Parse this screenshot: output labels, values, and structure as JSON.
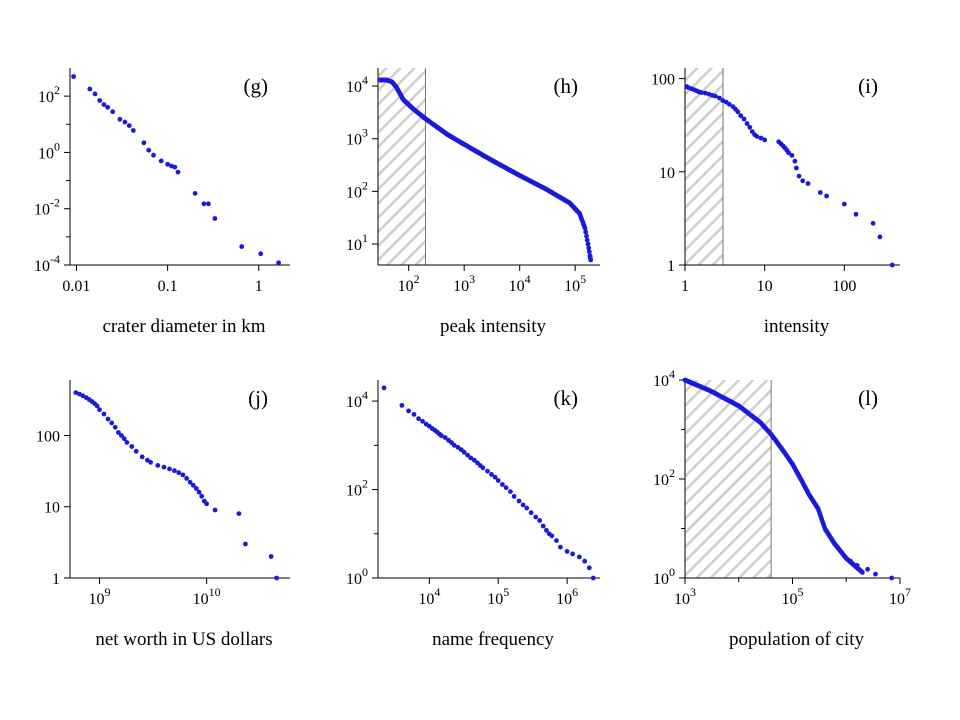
{
  "colors": {
    "points": "#1a1adc",
    "hatch": "#c8c8c8",
    "axis": "#000000"
  },
  "chart_data": [
    {
      "type": "scatter",
      "panel": "(g)",
      "xlabel": "crater diameter in km",
      "xscale": "log",
      "yscale": "log",
      "xlim": [
        0.0085,
        2.2
      ],
      "ylim": [
        0.0001,
        1000
      ],
      "xticks": [
        {
          "v": 0.01,
          "t": "0.01"
        },
        {
          "v": 0.1,
          "t": "0.1"
        },
        {
          "v": 1,
          "t": "1"
        }
      ],
      "yticks": [
        {
          "v": 0.0001,
          "t": "10",
          "e": "-4"
        },
        {
          "v": 0.01,
          "t": "10",
          "e": "-2"
        },
        {
          "v": 1,
          "t": "10",
          "e": "0"
        },
        {
          "v": 100,
          "t": "10",
          "e": "2"
        }
      ],
      "minor_x": [],
      "minor_y": [
        0.001,
        0.1,
        10
      ],
      "shade": null,
      "points": [
        [
          0.0093,
          500
        ],
        [
          0.014,
          180
        ],
        [
          0.016,
          120
        ],
        [
          0.018,
          70
        ],
        [
          0.02,
          50
        ],
        [
          0.022,
          40
        ],
        [
          0.025,
          28
        ],
        [
          0.03,
          15
        ],
        [
          0.034,
          12
        ],
        [
          0.038,
          9
        ],
        [
          0.042,
          6
        ],
        [
          0.055,
          2.2
        ],
        [
          0.062,
          1.2
        ],
        [
          0.07,
          0.8
        ],
        [
          0.085,
          0.5
        ],
        [
          0.1,
          0.38
        ],
        [
          0.11,
          0.33
        ],
        [
          0.12,
          0.3
        ],
        [
          0.13,
          0.2
        ],
        [
          0.2,
          0.035
        ],
        [
          0.25,
          0.015
        ],
        [
          0.28,
          0.015
        ],
        [
          0.33,
          0.0045
        ],
        [
          0.65,
          0.00045
        ],
        [
          1.05,
          0.00025
        ],
        [
          1.65,
          0.00012
        ]
      ]
    },
    {
      "type": "scatter",
      "panel": "(h)",
      "xlabel": "peak intensity",
      "xscale": "log",
      "yscale": "log",
      "xlim": [
        28,
        280000
      ],
      "ylim": [
        4,
        22000
      ],
      "xticks": [
        {
          "v": 100,
          "t": "10",
          "e": "2"
        },
        {
          "v": 1000,
          "t": "10",
          "e": "3"
        },
        {
          "v": 10000,
          "t": "10",
          "e": "4"
        },
        {
          "v": 100000,
          "t": "10",
          "e": "5"
        }
      ],
      "yticks": [
        {
          "v": 10,
          "t": "10",
          "e": "1"
        },
        {
          "v": 100,
          "t": "10",
          "e": "2"
        },
        {
          "v": 1000,
          "t": "10",
          "e": "3"
        },
        {
          "v": 10000,
          "t": "10",
          "e": "4"
        }
      ],
      "minor_x": [],
      "minor_y": [],
      "shade": [
        28,
        200
      ],
      "curve": [
        [
          30,
          13000
        ],
        [
          40,
          13000
        ],
        [
          50,
          12000
        ],
        [
          60,
          9500
        ],
        [
          80,
          5500
        ],
        [
          120,
          3700
        ],
        [
          200,
          2400
        ],
        [
          500,
          1200
        ],
        [
          1000,
          780
        ],
        [
          3000,
          400
        ],
        [
          10000,
          200
        ],
        [
          30000,
          110
        ],
        [
          80000,
          60
        ],
        [
          120000,
          38
        ],
        [
          150000,
          20
        ],
        [
          170000,
          10
        ],
        [
          185000,
          6
        ],
        [
          190000,
          5
        ]
      ],
      "curve_density": 260
    },
    {
      "type": "scatter",
      "panel": "(i)",
      "xlabel": "intensity",
      "xscale": "log",
      "yscale": "log",
      "xlim": [
        1,
        500
      ],
      "ylim": [
        1,
        130
      ],
      "xticks": [
        {
          "v": 1,
          "t": "1"
        },
        {
          "v": 10,
          "t": "10"
        },
        {
          "v": 100,
          "t": "100"
        }
      ],
      "yticks": [
        {
          "v": 1,
          "t": "1"
        },
        {
          "v": 10,
          "t": "10"
        },
        {
          "v": 100,
          "t": "100"
        }
      ],
      "minor_x": [],
      "minor_y": [],
      "shade": [
        1,
        3
      ],
      "points": [
        [
          1.05,
          82
        ],
        [
          1.1,
          80
        ],
        [
          1.2,
          78
        ],
        [
          1.3,
          76
        ],
        [
          1.4,
          74
        ],
        [
          1.5,
          72
        ],
        [
          1.6,
          71
        ],
        [
          1.8,
          70
        ],
        [
          2,
          68
        ],
        [
          2.2,
          66
        ],
        [
          2.4,
          65
        ],
        [
          2.7,
          62
        ],
        [
          3,
          58
        ],
        [
          3.3,
          56
        ],
        [
          3.6,
          53
        ],
        [
          4,
          50
        ],
        [
          4.3,
          47
        ],
        [
          4.6,
          44
        ],
        [
          5,
          40
        ],
        [
          5.5,
          37
        ],
        [
          6,
          33
        ],
        [
          6.5,
          30
        ],
        [
          7,
          27
        ],
        [
          7.5,
          25
        ],
        [
          8,
          24
        ],
        [
          9,
          23
        ],
        [
          10,
          22
        ],
        [
          15,
          21
        ],
        [
          16,
          20
        ],
        [
          17,
          19
        ],
        [
          18,
          18
        ],
        [
          19,
          17
        ],
        [
          20,
          16
        ],
        [
          22,
          15
        ],
        [
          24,
          13
        ],
        [
          25,
          11
        ],
        [
          27,
          9
        ],
        [
          30,
          8
        ],
        [
          35,
          7.5
        ],
        [
          50,
          6
        ],
        [
          60,
          5.5
        ],
        [
          100,
          4.5
        ],
        [
          140,
          3.5
        ],
        [
          230,
          2.8
        ],
        [
          280,
          2
        ],
        [
          400,
          1
        ]
      ]
    },
    {
      "type": "scatter",
      "panel": "(j)",
      "xlabel": "net worth in US dollars",
      "xscale": "log",
      "yscale": "log",
      "xlim": [
        530000000,
        60000000000
      ],
      "ylim": [
        1,
        600
      ],
      "xticks": [
        {
          "v": 1000000000,
          "t": "10",
          "e": "9"
        },
        {
          "v": 10000000000,
          "t": "10",
          "e": "10"
        }
      ],
      "yticks": [
        {
          "v": 1,
          "t": "1"
        },
        {
          "v": 10,
          "t": "10"
        },
        {
          "v": 100,
          "t": "100"
        }
      ],
      "minor_x": [],
      "minor_y": [],
      "shade": null,
      "points": [
        [
          600000000,
          400
        ],
        [
          650000000,
          380
        ],
        [
          700000000,
          360
        ],
        [
          750000000,
          340
        ],
        [
          800000000,
          320
        ],
        [
          850000000,
          300
        ],
        [
          900000000,
          280
        ],
        [
          950000000,
          260
        ],
        [
          1000000000,
          230
        ],
        [
          1100000000,
          200
        ],
        [
          1200000000,
          170
        ],
        [
          1300000000,
          150
        ],
        [
          1400000000,
          130
        ],
        [
          1500000000,
          110
        ],
        [
          1600000000,
          100
        ],
        [
          1700000000,
          90
        ],
        [
          1800000000,
          80
        ],
        [
          2000000000,
          70
        ],
        [
          2200000000,
          60
        ],
        [
          2500000000,
          50
        ],
        [
          2800000000,
          45
        ],
        [
          3000000000,
          42
        ],
        [
          3500000000,
          38
        ],
        [
          4000000000,
          36
        ],
        [
          4500000000,
          34
        ],
        [
          5000000000,
          32
        ],
        [
          5500000000,
          30
        ],
        [
          6000000000,
          28
        ],
        [
          6500000000,
          25
        ],
        [
          7000000000,
          22
        ],
        [
          7500000000,
          20
        ],
        [
          8000000000,
          18
        ],
        [
          8500000000,
          16
        ],
        [
          9000000000,
          14
        ],
        [
          9500000000,
          12
        ],
        [
          10000000000,
          11
        ],
        [
          12000000000,
          9
        ],
        [
          20000000000,
          8
        ],
        [
          23000000000,
          3
        ],
        [
          40000000000,
          2
        ],
        [
          45000000000,
          1
        ]
      ]
    },
    {
      "type": "scatter",
      "panel": "(k)",
      "xlabel": "name frequency",
      "xscale": "log",
      "yscale": "log",
      "xlim": [
        1800,
        3000000
      ],
      "ylim": [
        1,
        30000
      ],
      "xticks": [
        {
          "v": 10000,
          "t": "10",
          "e": "4"
        },
        {
          "v": 100000,
          "t": "10",
          "e": "5"
        },
        {
          "v": 1000000,
          "t": "10",
          "e": "6"
        }
      ],
      "yticks": [
        {
          "v": 1,
          "t": "10",
          "e": "0"
        },
        {
          "v": 100,
          "t": "10",
          "e": "2"
        },
        {
          "v": 10000,
          "t": "10",
          "e": "4"
        }
      ],
      "minor_x": [],
      "minor_y": [
        10,
        1000
      ],
      "shade": null,
      "points": [
        [
          2200,
          20000
        ],
        [
          4000,
          8000
        ],
        [
          5000,
          6000
        ],
        [
          6000,
          5000
        ],
        [
          7000,
          4000
        ],
        [
          8000,
          3500
        ],
        [
          9000,
          3000
        ],
        [
          10000,
          2700
        ],
        [
          11000,
          2400
        ],
        [
          12000,
          2200
        ],
        [
          13000,
          2000
        ],
        [
          14000,
          1800
        ],
        [
          15000,
          1650
        ],
        [
          17000,
          1500
        ],
        [
          19000,
          1300
        ],
        [
          21000,
          1150
        ],
        [
          23000,
          1000
        ],
        [
          26000,
          900
        ],
        [
          29000,
          800
        ],
        [
          32000,
          700
        ],
        [
          36000,
          600
        ],
        [
          40000,
          520
        ],
        [
          45000,
          460
        ],
        [
          50000,
          400
        ],
        [
          55000,
          350
        ],
        [
          60000,
          310
        ],
        [
          70000,
          260
        ],
        [
          80000,
          220
        ],
        [
          90000,
          190
        ],
        [
          100000,
          160
        ],
        [
          115000,
          130
        ],
        [
          130000,
          110
        ],
        [
          150000,
          90
        ],
        [
          170000,
          70
        ],
        [
          200000,
          55
        ],
        [
          230000,
          45
        ],
        [
          260000,
          38
        ],
        [
          300000,
          30
        ],
        [
          350000,
          24
        ],
        [
          400000,
          20
        ],
        [
          450000,
          15
        ],
        [
          500000,
          12
        ],
        [
          550000,
          10
        ],
        [
          600000,
          9
        ],
        [
          700000,
          7
        ],
        [
          800000,
          5
        ],
        [
          1000000,
          4
        ],
        [
          1200000,
          3.5
        ],
        [
          1500000,
          3
        ],
        [
          1800000,
          2.4
        ],
        [
          2100000,
          1.7
        ],
        [
          2400000,
          1
        ]
      ]
    },
    {
      "type": "scatter",
      "panel": "(l)",
      "xlabel": "population of city",
      "xscale": "log",
      "yscale": "log",
      "xlim": [
        1000,
        10000000
      ],
      "ylim": [
        1,
        10000
      ],
      "xticks": [
        {
          "v": 1000,
          "t": "10",
          "e": "3"
        },
        {
          "v": 100000,
          "t": "10",
          "e": "5"
        },
        {
          "v": 10000000,
          "t": "10",
          "e": "7"
        }
      ],
      "yticks": [
        {
          "v": 1,
          "t": "10",
          "e": "0"
        },
        {
          "v": 100,
          "t": "10",
          "e": "2"
        },
        {
          "v": 10000,
          "t": "10",
          "e": "4"
        }
      ],
      "minor_x": [
        10000,
        1000000
      ],
      "minor_y": [
        10,
        1000
      ],
      "shade": [
        1000,
        40000
      ],
      "curve": [
        [
          1000,
          10000
        ],
        [
          3000,
          6000
        ],
        [
          10000,
          3000
        ],
        [
          25000,
          1400
        ],
        [
          40000,
          800
        ],
        [
          70000,
          350
        ],
        [
          100000,
          200
        ],
        [
          150000,
          90
        ],
        [
          200000,
          50
        ],
        [
          300000,
          25
        ],
        [
          400000,
          10
        ],
        [
          600000,
          5
        ],
        [
          1000000,
          2.5
        ],
        [
          2000000,
          1.3
        ]
      ],
      "curve_density": 200,
      "points": [
        [
          1200000,
          2.2
        ],
        [
          1600000,
          1.8
        ],
        [
          2500000,
          1.5
        ],
        [
          3500000,
          1.2
        ],
        [
          7000000,
          1
        ]
      ]
    }
  ]
}
